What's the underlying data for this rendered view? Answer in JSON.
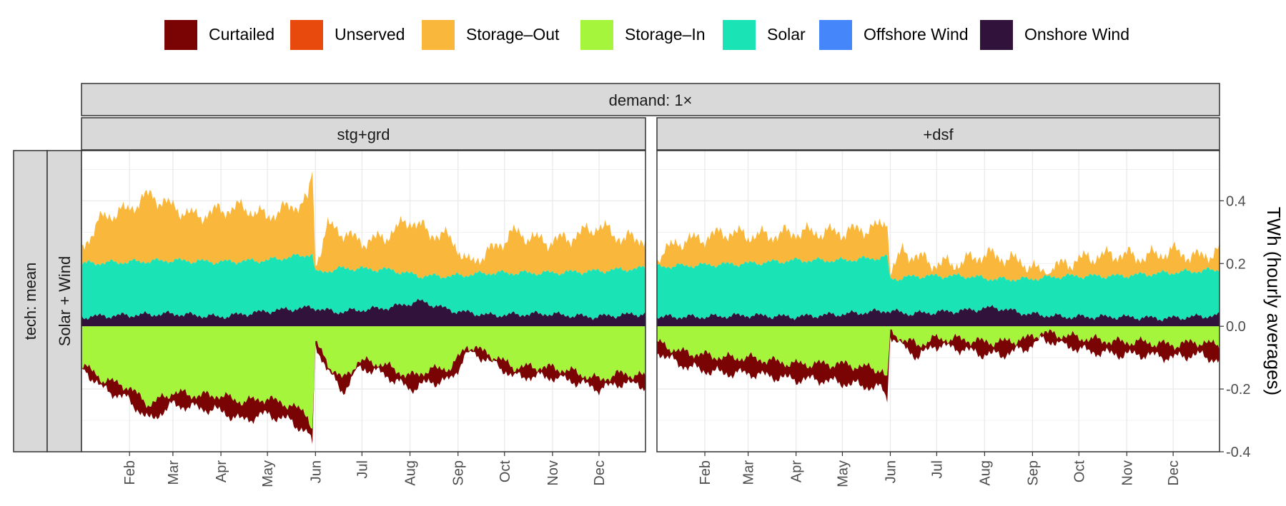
{
  "chart_data": {
    "type": "area",
    "title": "",
    "legend": {
      "position": "top",
      "entries": [
        {
          "name": "Curtailed",
          "color": "#7a0403"
        },
        {
          "name": "Unserved",
          "color": "#e8490d"
        },
        {
          "name": "Storage–Out",
          "color": "#f9b73c"
        },
        {
          "name": "Storage–In",
          "color": "#a4f53c"
        },
        {
          "name": "Solar",
          "color": "#1ae4b6"
        },
        {
          "name": "Offshore Wind",
          "color": "#4686fb"
        },
        {
          "name": "Onshore Wind",
          "color": "#30123b"
        }
      ]
    },
    "facet_top": "demand: 1×",
    "row_strips": [
      "tech: mean",
      "Solar + Wind"
    ],
    "ylabel": "TWh (hourly averages)",
    "ylim": [
      -0.4,
      0.56
    ],
    "y_ticks": [
      {
        "value": 0.4,
        "label": "0.4"
      },
      {
        "value": 0.2,
        "label": "0.2"
      },
      {
        "value": 0.0,
        "label": "0.0"
      },
      {
        "value": -0.2,
        "label": "-0.2"
      },
      {
        "value": -0.4,
        "label": "-0.4"
      }
    ],
    "x_axis": {
      "unit": "day of year",
      "range": [
        1,
        365
      ]
    },
    "x_ticks": [
      {
        "day": 32,
        "label": "Feb"
      },
      {
        "day": 60,
        "label": "Mar"
      },
      {
        "day": 91,
        "label": "Apr"
      },
      {
        "day": 121,
        "label": "May"
      },
      {
        "day": 152,
        "label": "Jun"
      },
      {
        "day": 182,
        "label": "Jul"
      },
      {
        "day": 213,
        "label": "Aug"
      },
      {
        "day": 244,
        "label": "Sep"
      },
      {
        "day": 274,
        "label": "Oct"
      },
      {
        "day": 305,
        "label": "Nov"
      },
      {
        "day": 335,
        "label": "Dec"
      }
    ],
    "panels": [
      {
        "name": "stg+grd",
        "series": {
          "onshore_wind": [
            [
              1,
              0.03
            ],
            [
              30,
              0.035
            ],
            [
              60,
              0.04
            ],
            [
              90,
              0.03
            ],
            [
              125,
              0.05
            ],
            [
              150,
              0.06
            ],
            [
              165,
              0.045
            ],
            [
              200,
              0.06
            ],
            [
              220,
              0.08
            ],
            [
              240,
              0.05
            ],
            [
              265,
              0.035
            ],
            [
              300,
              0.04
            ],
            [
              330,
              0.03
            ],
            [
              365,
              0.04
            ]
          ],
          "solar": [
            [
              1,
              0.2
            ],
            [
              30,
              0.205
            ],
            [
              60,
              0.21
            ],
            [
              90,
              0.205
            ],
            [
              120,
              0.21
            ],
            [
              150,
              0.23
            ],
            [
              152,
              0.17
            ],
            [
              170,
              0.185
            ],
            [
              200,
              0.18
            ],
            [
              220,
              0.16
            ],
            [
              240,
              0.16
            ],
            [
              265,
              0.17
            ],
            [
              300,
              0.17
            ],
            [
              330,
              0.175
            ],
            [
              365,
              0.185
            ]
          ],
          "storage_out": [
            [
              1,
              0.25
            ],
            [
              15,
              0.35
            ],
            [
              30,
              0.37
            ],
            [
              45,
              0.42
            ],
            [
              60,
              0.38
            ],
            [
              75,
              0.35
            ],
            [
              90,
              0.37
            ],
            [
              105,
              0.38
            ],
            [
              120,
              0.35
            ],
            [
              135,
              0.38
            ],
            [
              147,
              0.4
            ],
            [
              150,
              0.5
            ],
            [
              152,
              0.2
            ],
            [
              160,
              0.32
            ],
            [
              170,
              0.3
            ],
            [
              180,
              0.27
            ],
            [
              195,
              0.28
            ],
            [
              213,
              0.34
            ],
            [
              225,
              0.3
            ],
            [
              240,
              0.28
            ],
            [
              250,
              0.2
            ],
            [
              265,
              0.24
            ],
            [
              280,
              0.3
            ],
            [
              300,
              0.27
            ],
            [
              315,
              0.28
            ],
            [
              335,
              0.32
            ],
            [
              350,
              0.28
            ],
            [
              365,
              0.28
            ]
          ],
          "storage_in": [
            [
              1,
              -0.12
            ],
            [
              15,
              -0.17
            ],
            [
              30,
              -0.19
            ],
            [
              45,
              -0.25
            ],
            [
              60,
              -0.21
            ],
            [
              75,
              -0.22
            ],
            [
              90,
              -0.22
            ],
            [
              105,
              -0.24
            ],
            [
              120,
              -0.23
            ],
            [
              135,
              -0.25
            ],
            [
              147,
              -0.28
            ],
            [
              150,
              -0.33
            ],
            [
              152,
              -0.05
            ],
            [
              160,
              -0.12
            ],
            [
              170,
              -0.17
            ],
            [
              180,
              -0.11
            ],
            [
              195,
              -0.12
            ],
            [
              213,
              -0.16
            ],
            [
              225,
              -0.14
            ],
            [
              240,
              -0.13
            ],
            [
              250,
              -0.06
            ],
            [
              265,
              -0.09
            ],
            [
              280,
              -0.13
            ],
            [
              300,
              -0.13
            ],
            [
              315,
              -0.14
            ],
            [
              335,
              -0.17
            ],
            [
              350,
              -0.15
            ],
            [
              365,
              -0.16
            ]
          ],
          "curtailed": [
            [
              1,
              -0.13
            ],
            [
              15,
              -0.2
            ],
            [
              30,
              -0.23
            ],
            [
              45,
              -0.3
            ],
            [
              60,
              -0.25
            ],
            [
              75,
              -0.26
            ],
            [
              90,
              -0.27
            ],
            [
              105,
              -0.3
            ],
            [
              120,
              -0.28
            ],
            [
              135,
              -0.3
            ],
            [
              147,
              -0.34
            ],
            [
              150,
              -0.38
            ],
            [
              152,
              -0.06
            ],
            [
              160,
              -0.14
            ],
            [
              170,
              -0.21
            ],
            [
              180,
              -0.13
            ],
            [
              195,
              -0.15
            ],
            [
              213,
              -0.2
            ],
            [
              225,
              -0.18
            ],
            [
              240,
              -0.17
            ],
            [
              250,
              -0.08
            ],
            [
              265,
              -0.11
            ],
            [
              280,
              -0.16
            ],
            [
              300,
              -0.16
            ],
            [
              315,
              -0.17
            ],
            [
              335,
              -0.2
            ],
            [
              350,
              -0.18
            ],
            [
              365,
              -0.19
            ]
          ]
        }
      },
      {
        "name": "+dsf",
        "series": {
          "onshore_wind": [
            [
              1,
              0.03
            ],
            [
              30,
              0.03
            ],
            [
              60,
              0.035
            ],
            [
              90,
              0.03
            ],
            [
              125,
              0.04
            ],
            [
              150,
              0.05
            ],
            [
              165,
              0.04
            ],
            [
              200,
              0.05
            ],
            [
              220,
              0.06
            ],
            [
              240,
              0.04
            ],
            [
              265,
              0.03
            ],
            [
              300,
              0.03
            ],
            [
              330,
              0.025
            ],
            [
              365,
              0.035
            ]
          ],
          "solar": [
            [
              1,
              0.19
            ],
            [
              30,
              0.195
            ],
            [
              60,
              0.2
            ],
            [
              90,
              0.21
            ],
            [
              120,
              0.21
            ],
            [
              150,
              0.22
            ],
            [
              152,
              0.15
            ],
            [
              170,
              0.16
            ],
            [
              200,
              0.16
            ],
            [
              220,
              0.15
            ],
            [
              240,
              0.15
            ],
            [
              265,
              0.16
            ],
            [
              300,
              0.16
            ],
            [
              330,
              0.17
            ],
            [
              365,
              0.18
            ]
          ],
          "storage_out": [
            [
              1,
              0.22
            ],
            [
              15,
              0.27
            ],
            [
              30,
              0.28
            ],
            [
              45,
              0.3
            ],
            [
              60,
              0.29
            ],
            [
              75,
              0.29
            ],
            [
              90,
              0.3
            ],
            [
              105,
              0.3
            ],
            [
              120,
              0.3
            ],
            [
              135,
              0.31
            ],
            [
              147,
              0.32
            ],
            [
              150,
              0.35
            ],
            [
              152,
              0.17
            ],
            [
              160,
              0.24
            ],
            [
              170,
              0.22
            ],
            [
              180,
              0.2
            ],
            [
              195,
              0.2
            ],
            [
              213,
              0.23
            ],
            [
              225,
              0.22
            ],
            [
              240,
              0.2
            ],
            [
              250,
              0.17
            ],
            [
              265,
              0.2
            ],
            [
              280,
              0.22
            ],
            [
              300,
              0.23
            ],
            [
              315,
              0.22
            ],
            [
              335,
              0.24
            ],
            [
              350,
              0.22
            ],
            [
              365,
              0.24
            ]
          ],
          "storage_in": [
            [
              1,
              -0.05
            ],
            [
              15,
              -0.08
            ],
            [
              30,
              -0.09
            ],
            [
              45,
              -0.1
            ],
            [
              60,
              -0.1
            ],
            [
              75,
              -0.11
            ],
            [
              90,
              -0.12
            ],
            [
              105,
              -0.12
            ],
            [
              120,
              -0.12
            ],
            [
              135,
              -0.13
            ],
            [
              147,
              -0.14
            ],
            [
              150,
              -0.17
            ],
            [
              152,
              -0.02
            ],
            [
              160,
              -0.04
            ],
            [
              170,
              -0.06
            ],
            [
              180,
              -0.04
            ],
            [
              195,
              -0.04
            ],
            [
              213,
              -0.05
            ],
            [
              225,
              -0.05
            ],
            [
              240,
              -0.04
            ],
            [
              250,
              -0.02
            ],
            [
              265,
              -0.03
            ],
            [
              280,
              -0.04
            ],
            [
              300,
              -0.05
            ],
            [
              315,
              -0.05
            ],
            [
              335,
              -0.06
            ],
            [
              350,
              -0.05
            ],
            [
              365,
              -0.06
            ]
          ],
          "curtailed": [
            [
              1,
              -0.08
            ],
            [
              15,
              -0.12
            ],
            [
              30,
              -0.14
            ],
            [
              45,
              -0.15
            ],
            [
              60,
              -0.15
            ],
            [
              75,
              -0.16
            ],
            [
              90,
              -0.17
            ],
            [
              105,
              -0.17
            ],
            [
              120,
              -0.18
            ],
            [
              135,
              -0.19
            ],
            [
              147,
              -0.2
            ],
            [
              150,
              -0.23
            ],
            [
              152,
              -0.03
            ],
            [
              160,
              -0.06
            ],
            [
              170,
              -0.1
            ],
            [
              180,
              -0.06
            ],
            [
              195,
              -0.07
            ],
            [
              213,
              -0.09
            ],
            [
              225,
              -0.09
            ],
            [
              240,
              -0.07
            ],
            [
              250,
              -0.04
            ],
            [
              265,
              -0.06
            ],
            [
              280,
              -0.08
            ],
            [
              300,
              -0.09
            ],
            [
              315,
              -0.09
            ],
            [
              335,
              -0.1
            ],
            [
              350,
              -0.09
            ],
            [
              365,
              -0.11
            ]
          ]
        }
      }
    ]
  }
}
